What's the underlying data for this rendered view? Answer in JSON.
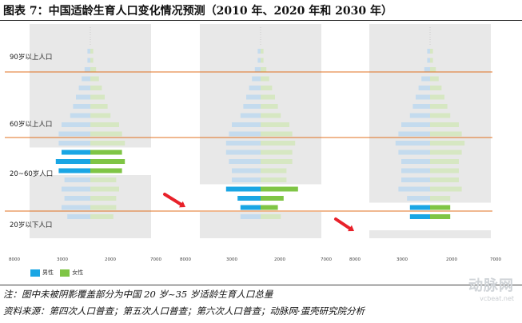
{
  "title": "图表 7：中国适龄生育人口变化情况预测（2010 年、2020 年和 2030 年）",
  "colors": {
    "male_highlight": "#1aa6e4",
    "female_highlight": "#7fc545",
    "male_faded": "#c4dbee",
    "female_faded": "#d6e7c2",
    "shade": "#e8e8e8",
    "rule": "#e07020",
    "arrow": "#e8212a"
  },
  "legend": {
    "male": "男性",
    "female": "女性"
  },
  "notes": {
    "note": "注：图中未被阴影覆盖部分为中国 20 岁~35 岁适龄生育人口总量",
    "source": "资料来源：第四次人口普查；第五次人口普查；第六次人口普查；动脉网·蛋壳研究院分析"
  },
  "watermark": {
    "logo": "动脉网",
    "site": "vcbeat.net"
  },
  "chart_data": {
    "type": "bar",
    "orientation": "population-pyramid",
    "series": [
      {
        "name": "男性"
      },
      {
        "name": "女性"
      }
    ],
    "age_labels": [
      "90岁以上人口",
      "60岁以上人口",
      "20~60岁人口",
      "20岁以下人口"
    ],
    "x_tick_labels": [
      "8000",
      "3000",
      "2000",
      "7000"
    ],
    "panels": [
      {
        "year": "2010",
        "male": [
          0,
          0,
          1,
          1,
          2,
          3,
          4,
          5,
          6,
          7,
          10,
          11,
          11,
          10,
          12,
          11,
          9,
          10,
          9,
          10,
          8
        ],
        "female": [
          0,
          0,
          1,
          1,
          2,
          3,
          4,
          5,
          6,
          7,
          10,
          11,
          12,
          11,
          12,
          11,
          9,
          10,
          9,
          9,
          8
        ],
        "highlight_rows": [
          13,
          14,
          15
        ]
      },
      {
        "year": "2020",
        "male": [
          0,
          0,
          1,
          1,
          2,
          3,
          4,
          5,
          6,
          7,
          10,
          11,
          12,
          12,
          11,
          10,
          10,
          12,
          8,
          7,
          7
        ],
        "female": [
          0,
          0,
          1,
          1,
          2,
          3,
          4,
          5,
          6,
          7,
          10,
          11,
          12,
          11,
          11,
          9,
          9,
          13,
          8,
          6,
          7
        ],
        "highlight_rows": [
          17,
          18,
          19
        ]
      },
      {
        "year": "2030",
        "male": [
          0,
          0,
          1,
          1,
          2,
          3,
          4,
          5,
          6,
          7,
          10,
          11,
          12,
          11,
          10,
          10,
          10,
          11,
          8,
          7,
          7
        ],
        "female": [
          0,
          0,
          1,
          1,
          2,
          3,
          4,
          5,
          6,
          7,
          10,
          11,
          12,
          11,
          10,
          10,
          10,
          11,
          7,
          7,
          7
        ],
        "highlight_rows": [
          19,
          20,
          21
        ]
      }
    ]
  }
}
